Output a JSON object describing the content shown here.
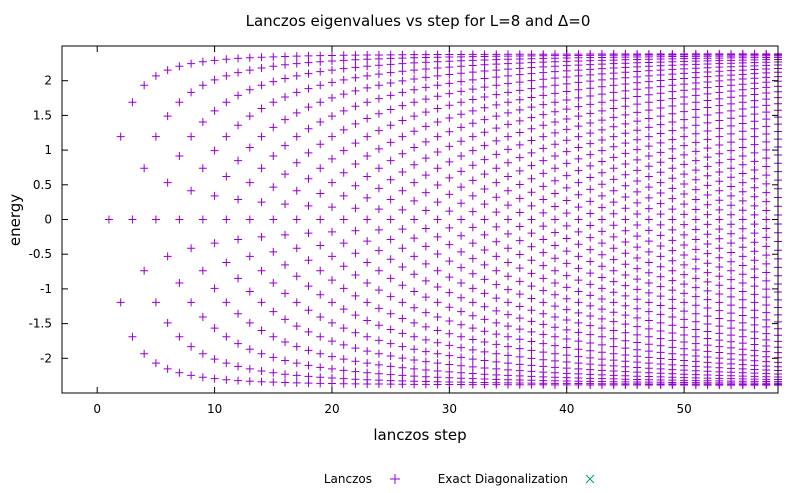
{
  "chart_data": {
    "type": "scatter",
    "title": "Lanczos eigenvalues vs step for L=8 and Δ=0",
    "xlabel": "lanczos step",
    "ylabel": "energy",
    "xlim": [
      -3,
      58
    ],
    "ylim": [
      -2.5,
      2.5
    ],
    "xticks": [
      "0",
      "10",
      "20",
      "30",
      "40",
      "50"
    ],
    "yticks": [
      "-2",
      "-1.5",
      "-1",
      "-0.5",
      "0",
      "0.5",
      "1",
      "1.5",
      "2"
    ],
    "grid": false,
    "legend_position": "bottom",
    "series": [
      {
        "name": "Lanczos",
        "marker": "+",
        "color": "#9400d3",
        "description_of_values": "at step k, k Ritz values; step 1 at energy 0; extremal values converge to ±2.39",
        "x_range": [
          1,
          58
        ],
        "extremal_energy": 2.39,
        "sample_points": [
          [
            1,
            0
          ],
          [
            2,
            0.95
          ],
          [
            2,
            -0.93
          ],
          [
            3,
            1.39
          ],
          [
            3,
            -0.09
          ],
          [
            3,
            -1.45
          ],
          [
            4,
            1.63
          ],
          [
            4,
            0.61
          ],
          [
            4,
            -0.61
          ],
          [
            4,
            -1.63
          ],
          [
            5,
            1.85
          ],
          [
            5,
            1.07
          ],
          [
            5,
            0
          ],
          [
            5,
            -1.07
          ],
          [
            5,
            -1.97
          ],
          [
            10,
            2.38
          ],
          [
            10,
            -2.3
          ],
          [
            20,
            2.39
          ],
          [
            20,
            -2.39
          ],
          [
            58,
            2.39
          ],
          [
            58,
            -2.39
          ]
        ]
      },
      {
        "name": "Exact Diagonalization",
        "marker": "x",
        "color": "#009e73",
        "values": []
      }
    ]
  }
}
